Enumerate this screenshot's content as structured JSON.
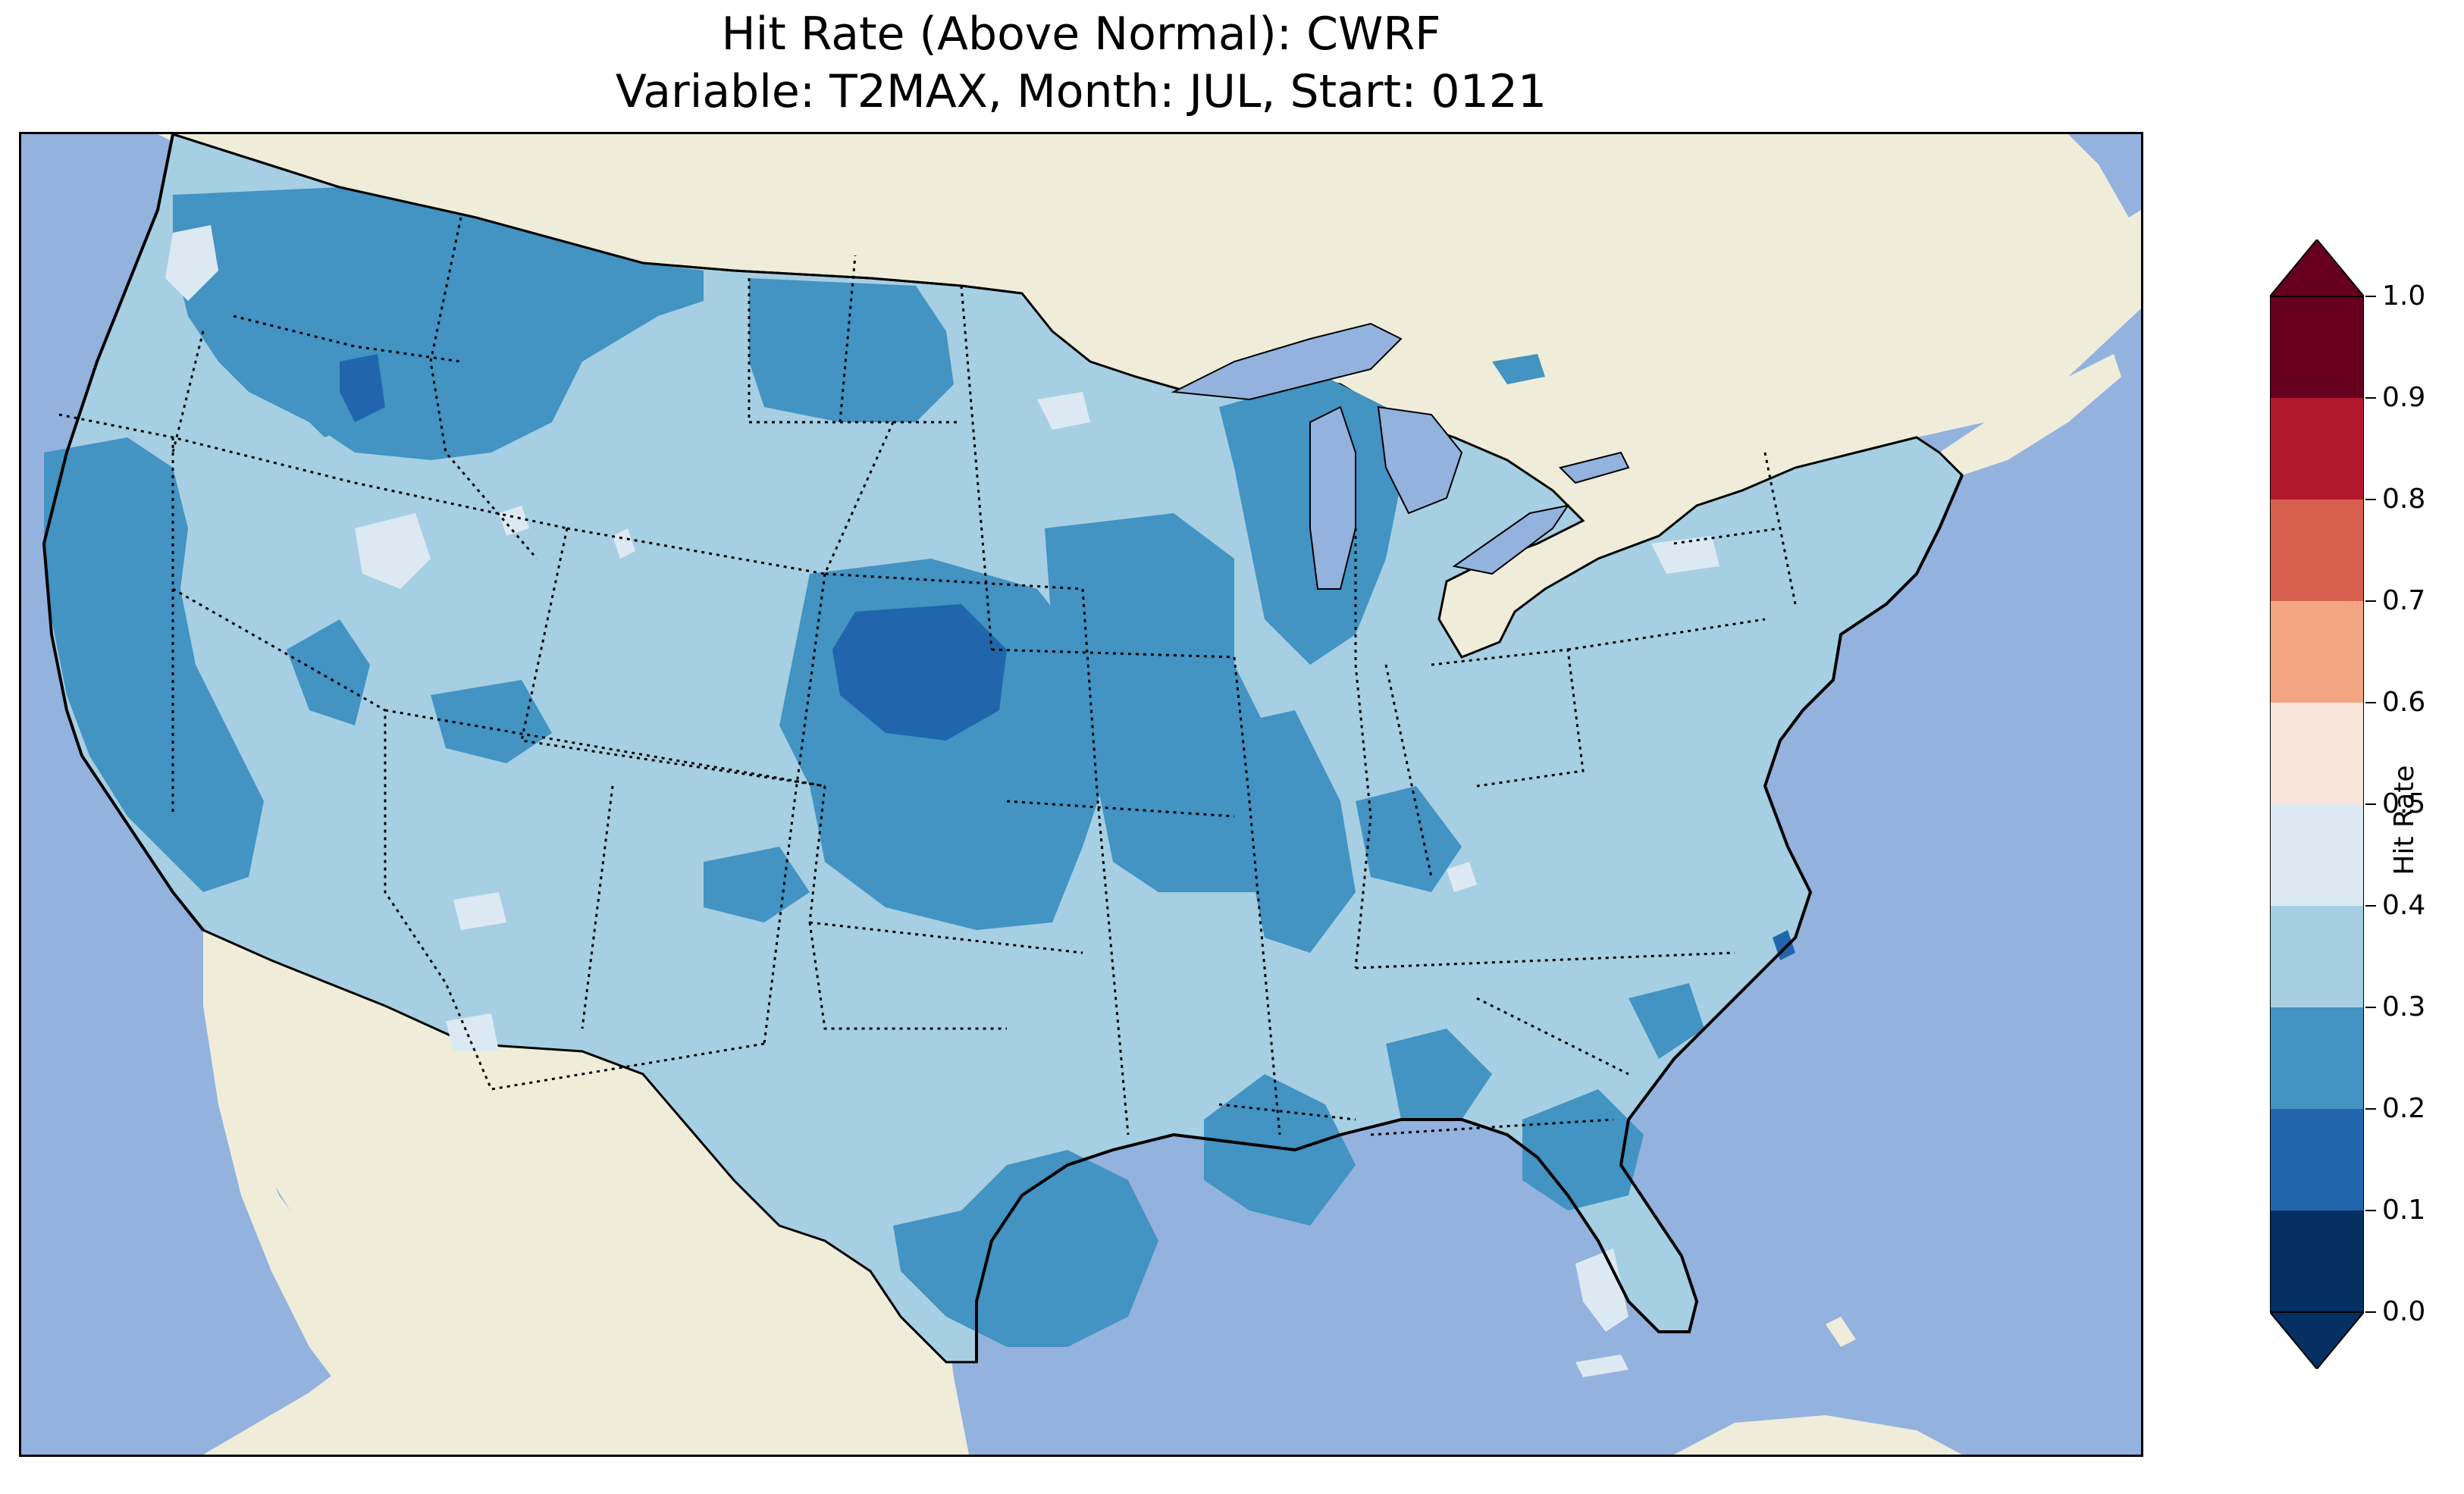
{
  "figure": {
    "title_line1": "Hit Rate (Above Normal): CWRF",
    "title_line2": "Variable: T2MAX, Month: JUL, Start: 0121"
  },
  "colors": {
    "ocean": "#94b2de",
    "land": "#efedda",
    "state_border": "#000000",
    "coastline": "#000000"
  },
  "colorbar": {
    "label": "Hit Rate",
    "ticks": [
      "0.0",
      "0.1",
      "0.2",
      "0.3",
      "0.4",
      "0.5",
      "0.6",
      "0.7",
      "0.8",
      "0.9",
      "1.0"
    ],
    "levels": [
      {
        "range": "0.0-0.1",
        "color": "#053061"
      },
      {
        "range": "0.1-0.2",
        "color": "#2166ac"
      },
      {
        "range": "0.2-0.3",
        "color": "#4393c3"
      },
      {
        "range": "0.3-0.4",
        "color": "#a6cfe3"
      },
      {
        "range": "0.4-0.5",
        "color": "#dde9f2"
      },
      {
        "range": "0.5-0.6",
        "color": "#f7e4db"
      },
      {
        "range": "0.6-0.7",
        "color": "#f4a582"
      },
      {
        "range": "0.7-0.8",
        "color": "#d6604d"
      },
      {
        "range": "0.8-0.9",
        "color": "#b2182b"
      },
      {
        "range": "0.9-1.0",
        "color": "#67001f"
      }
    ],
    "extend": "both"
  }
}
